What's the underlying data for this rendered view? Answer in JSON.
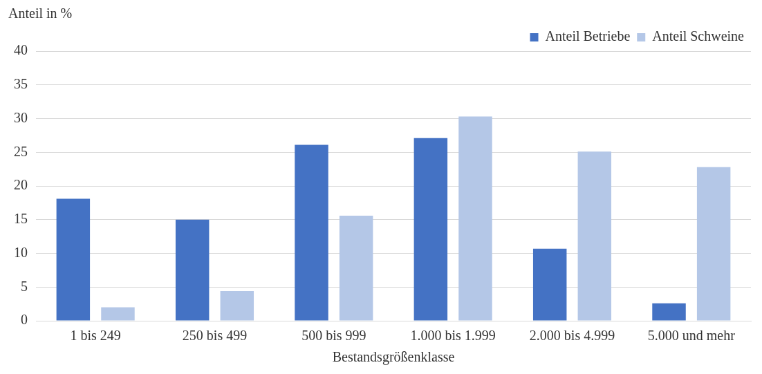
{
  "chart_data": {
    "type": "bar",
    "ylabel": "Anteil in %",
    "xlabel": "Bestandsgrößenklasse",
    "categories": [
      "1 bis 249",
      "250 bis 499",
      "500 bis 999",
      "1.000 bis 1.999",
      "2.000 bis 4.999",
      "5.000 und mehr"
    ],
    "series": [
      {
        "name": "Anteil Betriebe",
        "color": "#4472c4",
        "values": [
          18.1,
          15.0,
          26.1,
          27.1,
          10.7,
          2.6
        ]
      },
      {
        "name": "Anteil Schweine",
        "color": "#b4c7e7",
        "values": [
          2.0,
          4.4,
          15.6,
          30.3,
          25.1,
          22.8
        ]
      }
    ],
    "ylim": [
      0,
      40
    ],
    "yticks": [
      0,
      5,
      10,
      15,
      20,
      25,
      30,
      35,
      40
    ],
    "grid": "y",
    "legend": "top right"
  }
}
